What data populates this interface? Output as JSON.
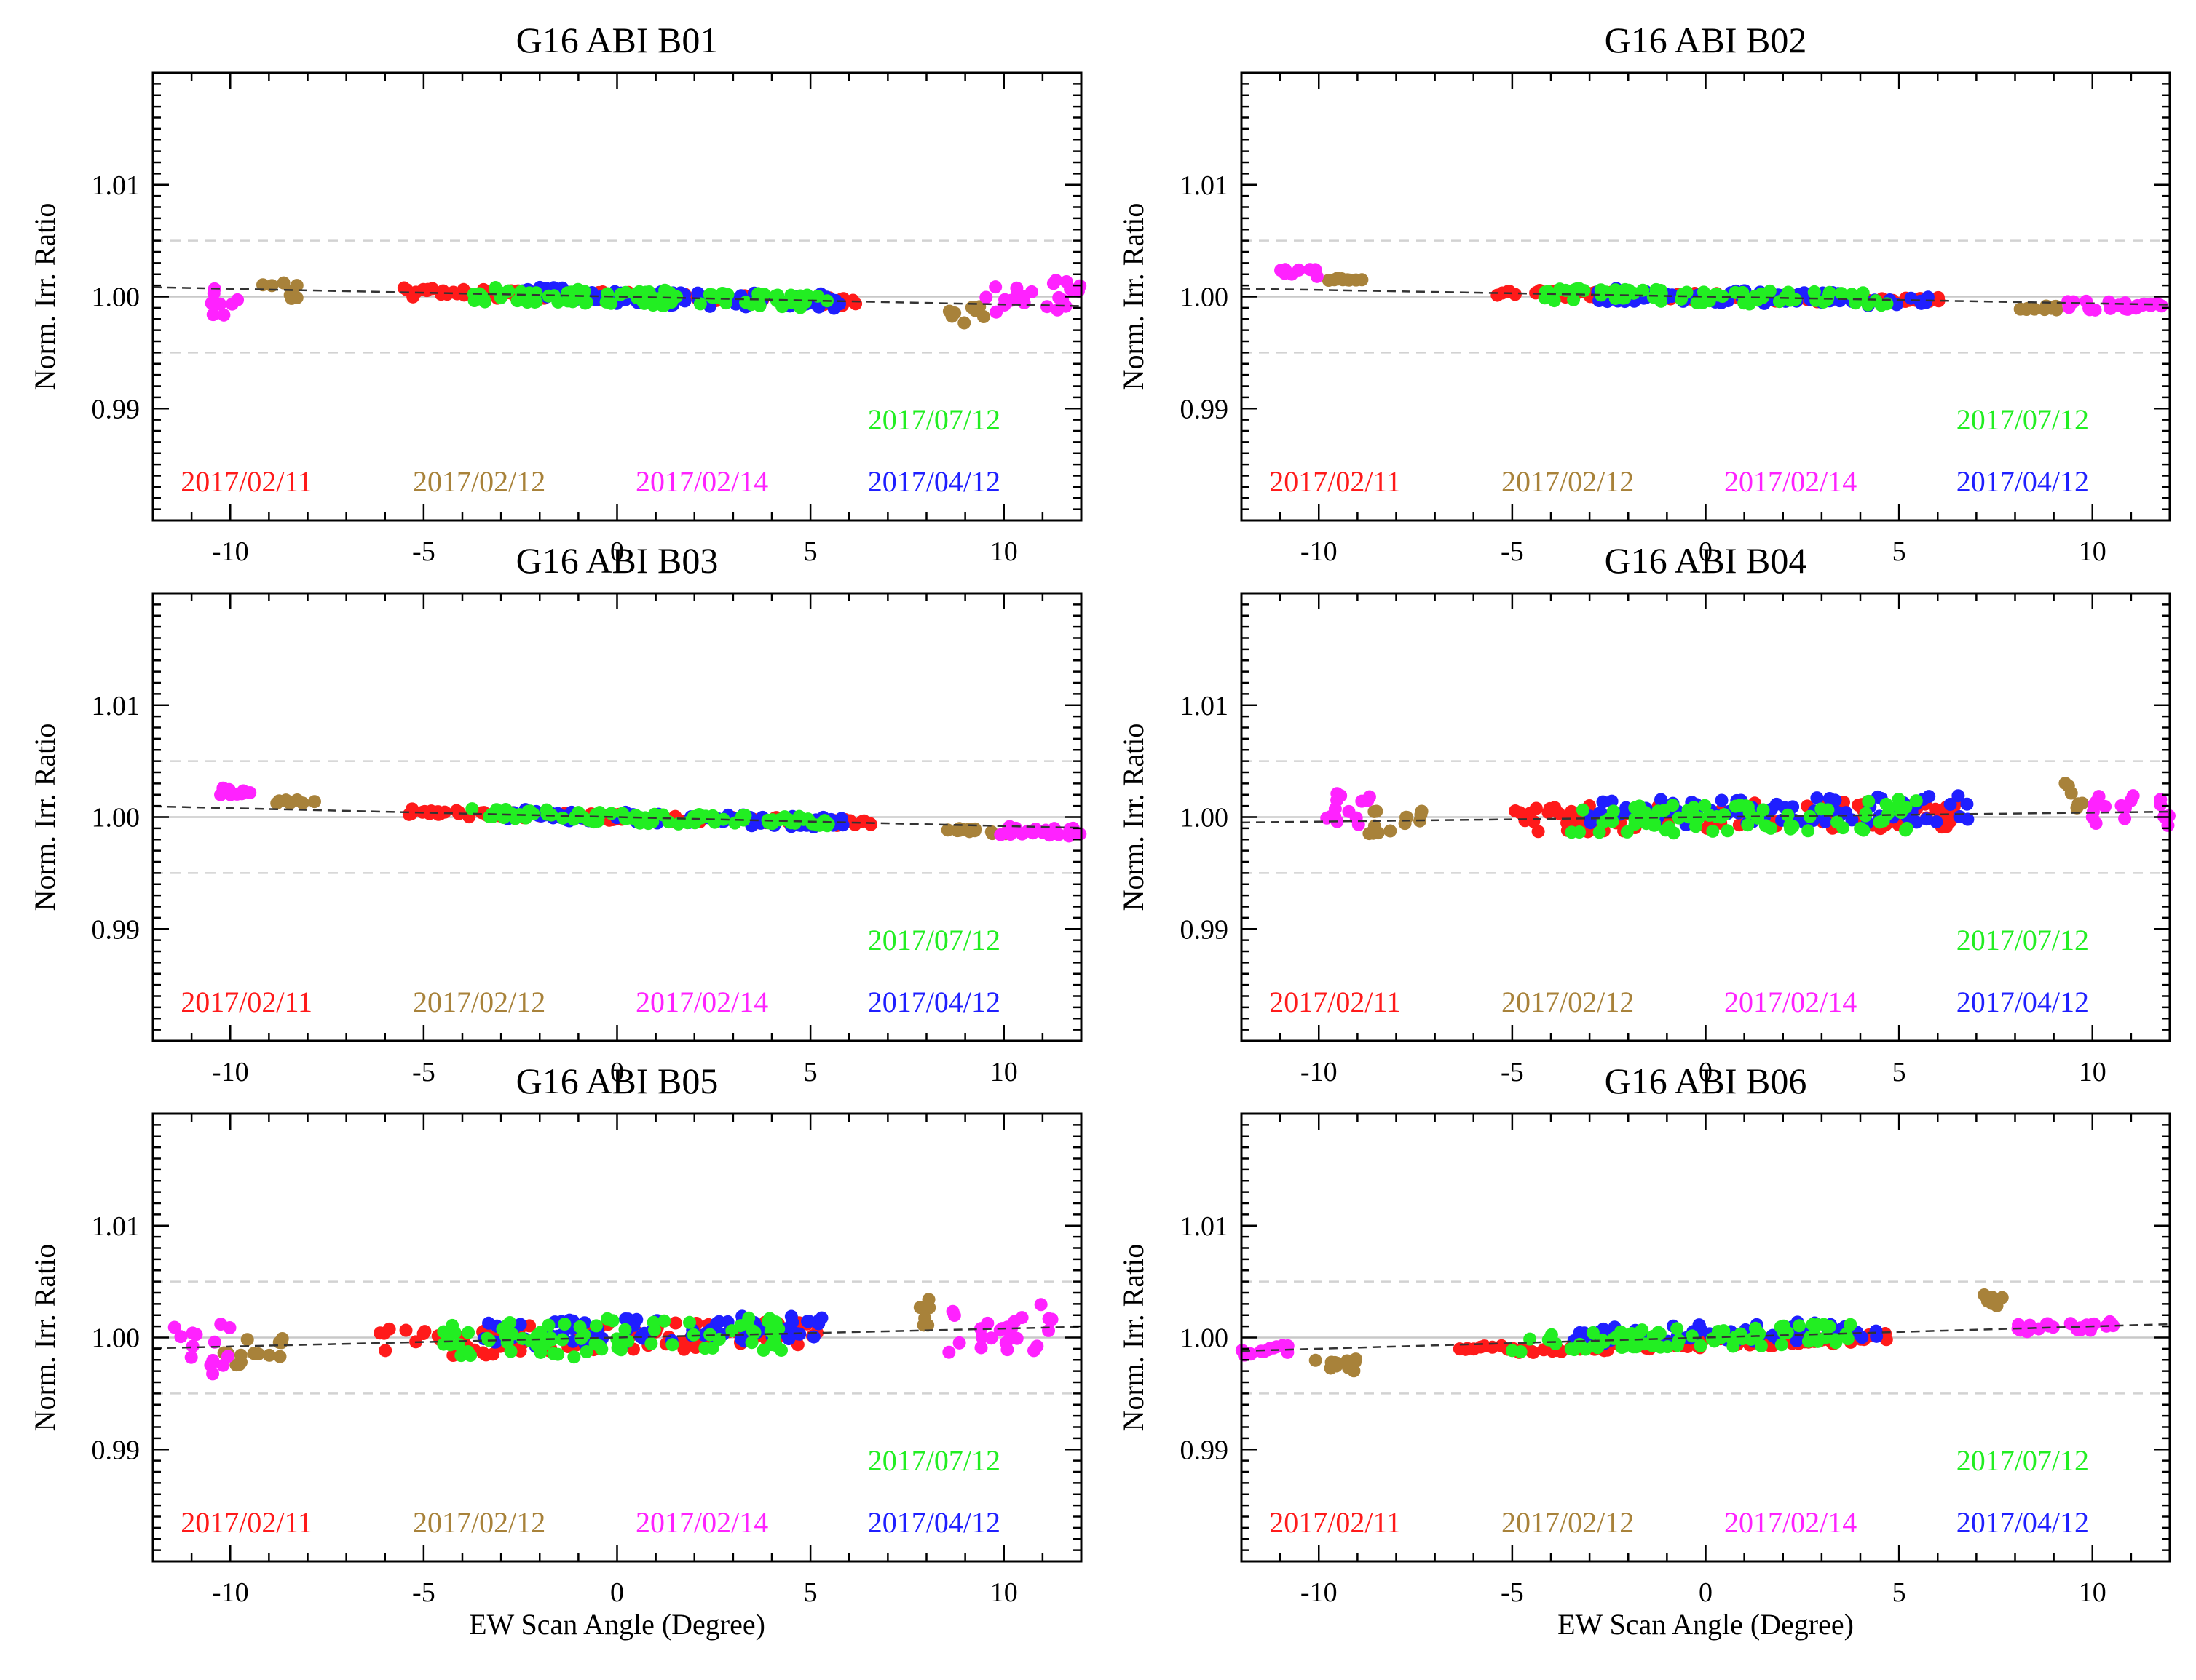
{
  "figure": {
    "xlabel": "EW Scan Angle (Degree)",
    "ylabel": "Norm. Irr. Ratio",
    "xlim": [
      -12,
      12
    ],
    "ylim": [
      0.98,
      1.02
    ],
    "x_ticks": [
      -10,
      -5,
      0,
      5,
      10
    ],
    "y_ticks": [
      0.99,
      1.0,
      1.01
    ],
    "y_tick_labels": [
      "0.99",
      "1.00",
      "1.01"
    ],
    "reference_lines": [
      0.995,
      1.0,
      1.005
    ],
    "series": [
      {
        "name": "2017/02/11",
        "color": "#ff1a1a"
      },
      {
        "name": "2017/02/12",
        "color": "#a8823a"
      },
      {
        "name": "2017/02/14",
        "color": "#ff22ff"
      },
      {
        "name": "2017/04/12",
        "color": "#1f1fff"
      },
      {
        "name": "2017/07/12",
        "color": "#22ee22"
      }
    ]
  },
  "chart_data": [
    {
      "type": "scatter",
      "title": "G16 ABI B01",
      "xlabel": "",
      "ylabel": "Norm. Irr. Ratio",
      "trend": {
        "slope": -7e-05,
        "intercept": 1.0
      },
      "series": [
        {
          "name": "2017/02/11",
          "x_range": [
            -5.6,
            6.4
          ],
          "center": 1.0,
          "spread": 0.0004
        },
        {
          "name": "2017/02/12",
          "x_range": [
            -9.2,
            -8.1
          ],
          "center": 1.0,
          "spread": 0.0008,
          "x_range2": [
            8.5,
            9.5
          ],
          "center2": 0.999
        },
        {
          "name": "2017/02/14",
          "x_range": [
            -10.5,
            -9.6
          ],
          "center": 0.9985,
          "spread": 0.0015,
          "x_range2": [
            9.5,
            12
          ],
          "center2": 1.0008
        },
        {
          "name": "2017/04/12",
          "x_range": [
            -2.5,
            5.8
          ],
          "center": 1.0,
          "spread": 0.0007
        },
        {
          "name": "2017/07/12",
          "x_range": [
            -4,
            5.5
          ],
          "center": 1.0,
          "spread": 0.0007
        }
      ]
    },
    {
      "type": "scatter",
      "title": "G16 ABI B02",
      "xlabel": "",
      "ylabel": "Norm. Irr. Ratio",
      "trend": {
        "slope": -6e-05,
        "intercept": 1.0
      },
      "series": [
        {
          "name": "2017/02/11",
          "x_range": [
            -5.6,
            6.2
          ],
          "center": 1.0,
          "spread": 0.0003
        },
        {
          "name": "2017/02/12",
          "x_range": [
            -9.8,
            -8.7
          ],
          "center": 1.001,
          "spread": 0.0002,
          "x_range2": [
            8,
            9.2
          ],
          "center2": 0.9995
        },
        {
          "name": "2017/02/14",
          "x_range": [
            -11,
            -10
          ],
          "center": 1.0015,
          "spread": 0.0004,
          "x_range2": [
            9.2,
            11.8
          ],
          "center2": 0.9998
        },
        {
          "name": "2017/04/12",
          "x_range": [
            -2.8,
            5.8
          ],
          "center": 1.0,
          "spread": 0.0006
        },
        {
          "name": "2017/07/12",
          "x_range": [
            -4.2,
            4.8
          ],
          "center": 1.0,
          "spread": 0.0006
        }
      ]
    },
    {
      "type": "scatter",
      "title": "G16 ABI B03",
      "xlabel": "",
      "ylabel": "Norm. Irr. Ratio",
      "trend": {
        "slope": -8e-05,
        "intercept": 1.0
      },
      "series": [
        {
          "name": "2017/02/11",
          "x_range": [
            -5.5,
            6.6
          ],
          "center": 1.0,
          "spread": 0.0003
        },
        {
          "name": "2017/02/12",
          "x_range": [
            -8.8,
            -7.8
          ],
          "center": 1.0007,
          "spread": 0.0002,
          "x_range2": [
            8.5,
            10.3
          ],
          "center2": 0.9995
        },
        {
          "name": "2017/02/14",
          "x_range": [
            -10.3,
            -9.4
          ],
          "center": 1.0015,
          "spread": 0.0004,
          "x_range2": [
            9.5,
            12
          ],
          "center2": 0.9996
        },
        {
          "name": "2017/04/12",
          "x_range": [
            -3,
            6.2
          ],
          "center": 1.0,
          "spread": 0.0005
        },
        {
          "name": "2017/07/12",
          "x_range": [
            -3.8,
            5.5
          ],
          "center": 1.0,
          "spread": 0.0005
        }
      ]
    },
    {
      "type": "scatter",
      "title": "G16 ABI B04",
      "xlabel": "",
      "ylabel": "Norm. Irr. Ratio",
      "trend": {
        "slope": 4e-05,
        "intercept": 1.0
      },
      "series": [
        {
          "name": "2017/02/11",
          "x_range": [
            -5,
            6.5
          ],
          "center": 1.0,
          "spread": 0.0012
        },
        {
          "name": "2017/02/12",
          "x_range": [
            -8.7,
            -7.2
          ],
          "center": 1.0,
          "spread": 0.0012,
          "x_range2": [
            9.2,
            9.8
          ],
          "center2": 1.0015
        },
        {
          "name": "2017/02/14",
          "x_range": [
            -10,
            -8.5
          ],
          "center": 1.001,
          "spread": 0.0015,
          "x_range2": [
            10,
            12
          ],
          "center2": 1.0
        },
        {
          "name": "2017/04/12",
          "x_range": [
            -3,
            6.8
          ],
          "center": 1.0005,
          "spread": 0.0012
        },
        {
          "name": "2017/07/12",
          "x_range": [
            -3.5,
            5.5
          ],
          "center": 1.0,
          "spread": 0.0014
        }
      ]
    },
    {
      "type": "scatter",
      "title": "G16 ABI B05",
      "xlabel": "",
      "ylabel": "Norm. Irr. Ratio",
      "trend": {
        "slope": 8e-05,
        "intercept": 1.0
      },
      "series": [
        {
          "name": "2017/02/11",
          "x_range": [
            -6.2,
            5.2
          ],
          "center": 1.0,
          "spread": 0.0013
        },
        {
          "name": "2017/02/12",
          "x_range": [
            -10.2,
            -8.6
          ],
          "center": 0.9995,
          "spread": 0.0013,
          "x_range2": [
            7.7,
            8.2
          ],
          "center2": 1.0015
        },
        {
          "name": "2017/02/14",
          "x_range": [
            -11.5,
            -10
          ],
          "center": 1.0,
          "spread": 0.0025,
          "x_range2": [
            8.5,
            11.3
          ],
          "center2": 1.0
        },
        {
          "name": "2017/04/12",
          "x_range": [
            -3.5,
            5.3
          ],
          "center": 1.0005,
          "spread": 0.0012
        },
        {
          "name": "2017/07/12",
          "x_range": [
            -4.5,
            4.5
          ],
          "center": 1.0,
          "spread": 0.0017
        }
      ]
    },
    {
      "type": "scatter",
      "title": "G16 ABI B06",
      "xlabel": "",
      "ylabel": "Norm. Irr. Ratio",
      "trend": {
        "slope": 0.0001,
        "intercept": 1.0
      },
      "series": [
        {
          "name": "2017/02/11",
          "x_range": [
            -6.5,
            5
          ],
          "center": 0.9995,
          "spread": 0.0004
        },
        {
          "name": "2017/02/12",
          "x_range": [
            -10.2,
            -9
          ],
          "center": 0.9985,
          "spread": 0.0006,
          "x_range2": [
            7.2,
            7.7
          ],
          "center2": 1.0025
        },
        {
          "name": "2017/02/14",
          "x_range": [
            -12,
            -10.5
          ],
          "center": 1.0,
          "spread": 0.0004,
          "x_range2": [
            8,
            10.8
          ],
          "center2": 1.0
        },
        {
          "name": "2017/04/12",
          "x_range": [
            -3.5,
            4.8
          ],
          "center": 1.0003,
          "spread": 0.0009
        },
        {
          "name": "2017/07/12",
          "x_range": [
            -5,
            4
          ],
          "center": 1.0,
          "spread": 0.0009
        }
      ]
    }
  ]
}
